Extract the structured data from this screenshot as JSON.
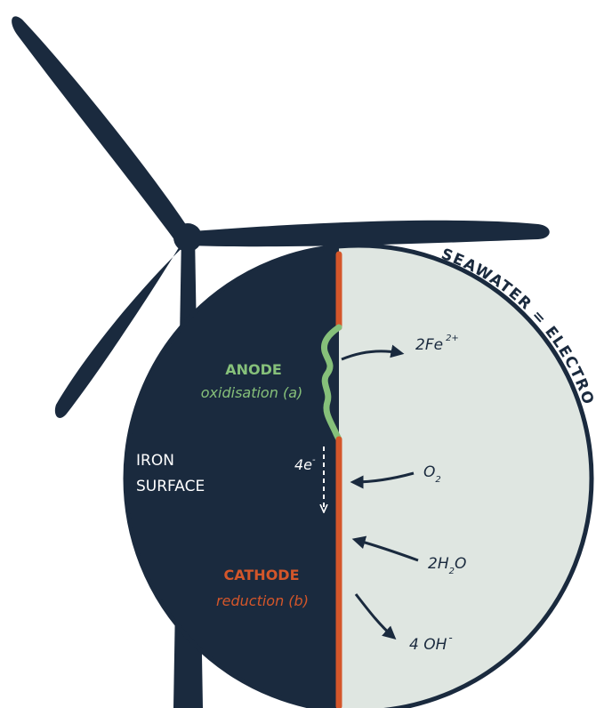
{
  "colors": {
    "navy": "#1a2a3e",
    "electrolyte": "#dfe6e1",
    "anode": "#86c07a",
    "cathode": "#d4562a",
    "white": "#ffffff"
  },
  "labels": {
    "seawater": "SEAWATER = ELECTROLYTE",
    "anode_title": "ANODE",
    "anode_sub": "oxidisation (a)",
    "iron_line1": "IRON",
    "iron_line2": "SURFACE",
    "electrons_base": "4e",
    "electrons_sup": "-",
    "cathode_title": "CATHODE",
    "cathode_sub": "reduction (b)"
  },
  "species": {
    "fe_base": "2Fe",
    "fe_sup": "2+",
    "o2_base": "O",
    "o2_sub": "2",
    "h2o_a": "2H",
    "h2o_sub": "2",
    "h2o_b": "O",
    "oh_base": "4 OH",
    "oh_sup": "-"
  },
  "icons": [
    "wind-turbine-icon"
  ]
}
